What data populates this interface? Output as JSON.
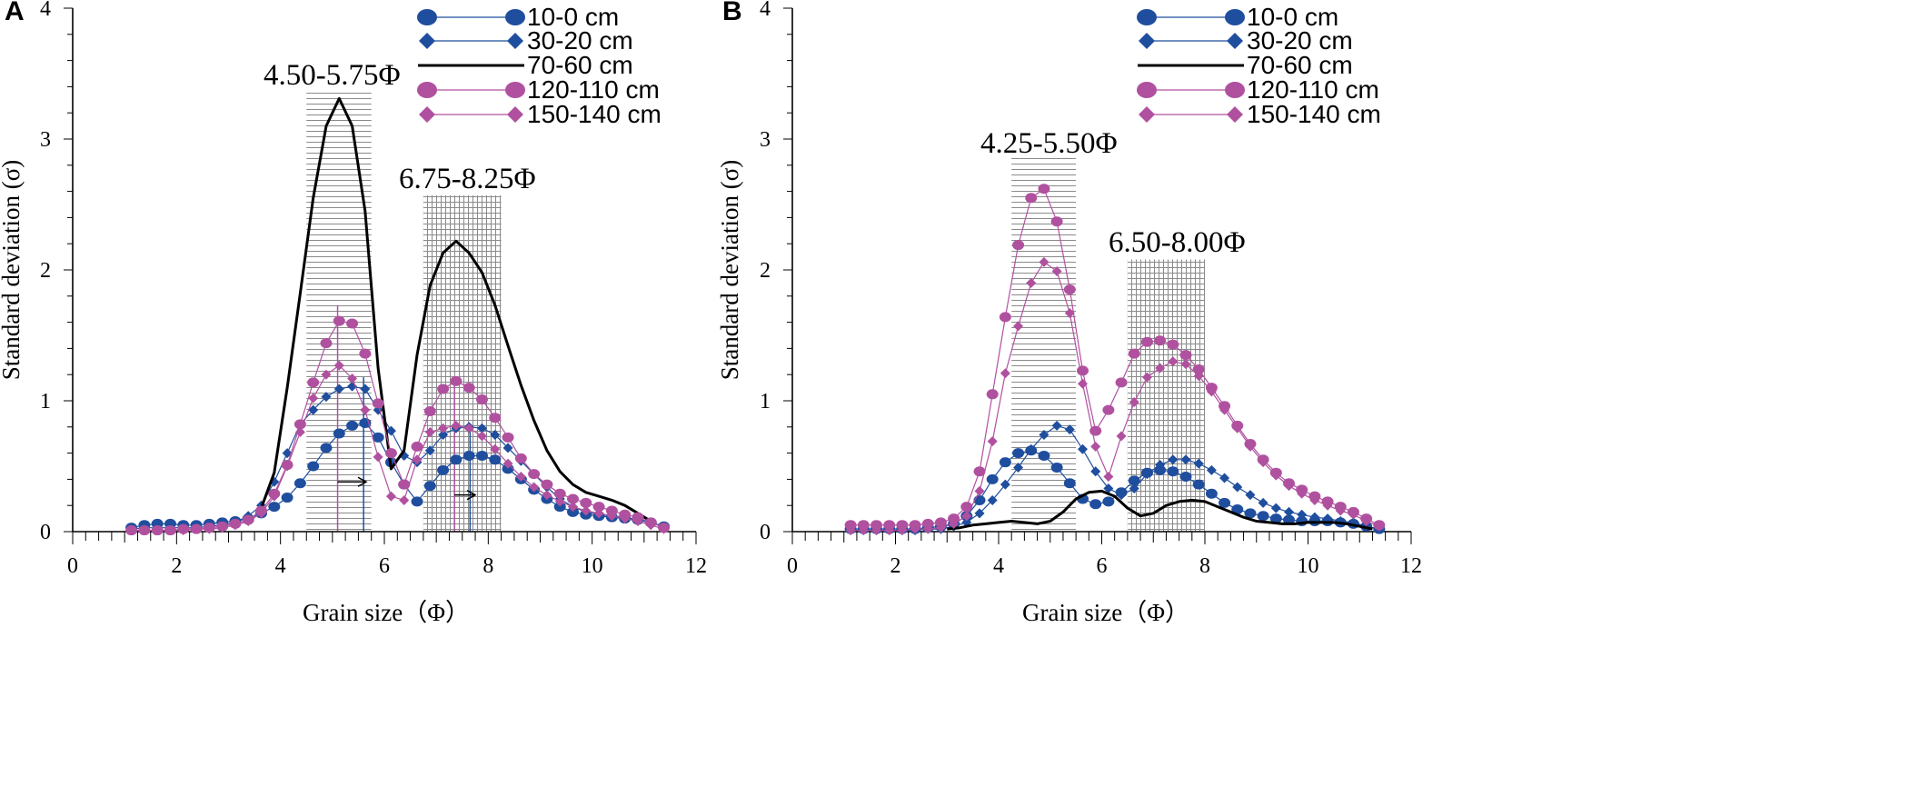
{
  "chart_data": [
    {
      "type": "line",
      "panel": "A",
      "xlabel": "Grain size（Φ）",
      "ylabel": "Standard deviation (σ)",
      "xlim": [
        0,
        12
      ],
      "ylim": [
        0,
        4
      ],
      "x_ticks": [
        "0",
        "2",
        "4",
        "6",
        "8",
        "10",
        "12"
      ],
      "y_ticks": [
        "0",
        "1",
        "2",
        "3",
        "4"
      ],
      "shaded_bands": [
        {
          "label": "4.50-5.75Φ",
          "x_range": [
            4.5,
            5.75
          ],
          "y_top": 3.38,
          "pattern": "horizontal"
        },
        {
          "label": "6.75-8.25Φ",
          "x_range": [
            6.75,
            8.25
          ],
          "y_top": 2.57,
          "pattern": "grid"
        }
      ],
      "vertical_markers": [
        {
          "x": 5.1,
          "y": 1.73,
          "color": "#b0519f"
        },
        {
          "x": 5.6,
          "y": 1.18,
          "color": "#1f4e9e"
        },
        {
          "x": 7.35,
          "y": 1.15,
          "color": "#b0519f"
        },
        {
          "x": 7.65,
          "y": 0.82,
          "color": "#1f4e9e"
        }
      ],
      "arrows": [
        {
          "from": [
            5.1,
            0.38
          ],
          "to": [
            5.65,
            0.38
          ]
        },
        {
          "from": [
            7.35,
            0.28
          ],
          "to": [
            7.75,
            0.28
          ]
        }
      ],
      "series": [
        {
          "name": "10-0 cm",
          "marker": "circle",
          "color": "#1f4e9e",
          "x": [
            1.13,
            1.38,
            1.63,
            1.88,
            2.13,
            2.38,
            2.63,
            2.88,
            3.13,
            3.38,
            3.63,
            3.88,
            4.13,
            4.38,
            4.63,
            4.88,
            5.13,
            5.38,
            5.63,
            5.88,
            6.13,
            6.38,
            6.63,
            6.88,
            7.13,
            7.38,
            7.63,
            7.88,
            8.13,
            8.38,
            8.63,
            8.88,
            9.13,
            9.38,
            9.63,
            9.88,
            10.13,
            10.38,
            10.63,
            10.88,
            11.13,
            11.38
          ],
          "values": [
            0.03,
            0.05,
            0.06,
            0.06,
            0.05,
            0.05,
            0.06,
            0.07,
            0.08,
            0.1,
            0.14,
            0.19,
            0.26,
            0.37,
            0.5,
            0.64,
            0.75,
            0.81,
            0.83,
            0.72,
            0.53,
            0.36,
            0.23,
            0.35,
            0.47,
            0.55,
            0.58,
            0.58,
            0.55,
            0.48,
            0.4,
            0.32,
            0.25,
            0.19,
            0.15,
            0.13,
            0.12,
            0.11,
            0.1,
            0.09,
            0.07,
            0.04
          ]
        },
        {
          "name": "30-20 cm",
          "marker": "diamond",
          "color": "#1f4e9e",
          "x": [
            1.13,
            1.38,
            1.63,
            1.88,
            2.13,
            2.38,
            2.63,
            2.88,
            3.13,
            3.38,
            3.63,
            3.88,
            4.13,
            4.38,
            4.63,
            4.88,
            5.13,
            5.38,
            5.63,
            5.88,
            6.13,
            6.38,
            6.63,
            6.88,
            7.13,
            7.38,
            7.63,
            7.88,
            8.13,
            8.38,
            8.63,
            8.88,
            9.13,
            9.38,
            9.63,
            9.88,
            10.13,
            10.38,
            10.63,
            10.88,
            11.13,
            11.38
          ],
          "values": [
            0.02,
            0.03,
            0.03,
            0.03,
            0.03,
            0.03,
            0.04,
            0.05,
            0.07,
            0.12,
            0.2,
            0.38,
            0.6,
            0.82,
            0.93,
            1.03,
            1.09,
            1.11,
            1.09,
            0.93,
            0.77,
            0.58,
            0.53,
            0.62,
            0.74,
            0.79,
            0.8,
            0.79,
            0.74,
            0.64,
            0.54,
            0.44,
            0.34,
            0.25,
            0.19,
            0.15,
            0.13,
            0.12,
            0.11,
            0.09,
            0.07,
            0.04
          ]
        },
        {
          "name": "70-60 cm",
          "marker": "none",
          "color": "#000000",
          "x": [
            3.63,
            3.88,
            4.13,
            4.38,
            4.63,
            4.88,
            5.13,
            5.38,
            5.63,
            5.88,
            6.13,
            6.38,
            6.63,
            6.88,
            7.13,
            7.38,
            7.63,
            7.88,
            8.13,
            8.38,
            8.63,
            8.88,
            9.13,
            9.38,
            9.63,
            9.88,
            10.13,
            10.38,
            10.63,
            10.88,
            11.13
          ],
          "values": [
            0.18,
            0.45,
            1.1,
            1.82,
            2.55,
            3.1,
            3.31,
            3.1,
            2.45,
            1.25,
            0.48,
            0.62,
            1.35,
            1.88,
            2.13,
            2.22,
            2.13,
            1.98,
            1.73,
            1.42,
            1.12,
            0.85,
            0.62,
            0.46,
            0.36,
            0.3,
            0.27,
            0.24,
            0.2,
            0.14,
            0.08
          ]
        },
        {
          "name": "120-110 cm",
          "marker": "circle",
          "color": "#b0519f",
          "x": [
            1.13,
            1.38,
            1.63,
            1.88,
            2.13,
            2.38,
            2.63,
            2.88,
            3.13,
            3.38,
            3.63,
            3.88,
            4.13,
            4.38,
            4.63,
            4.88,
            5.13,
            5.38,
            5.63,
            5.88,
            6.13,
            6.38,
            6.63,
            6.88,
            7.13,
            7.38,
            7.63,
            7.88,
            8.13,
            8.38,
            8.63,
            8.88,
            9.13,
            9.38,
            9.63,
            9.88,
            10.13,
            10.38,
            10.63,
            10.88,
            11.13,
            11.38
          ],
          "values": [
            0.01,
            0.01,
            0.01,
            0.01,
            0.02,
            0.02,
            0.03,
            0.04,
            0.06,
            0.09,
            0.16,
            0.29,
            0.51,
            0.82,
            1.14,
            1.44,
            1.61,
            1.59,
            1.36,
            0.98,
            0.6,
            0.36,
            0.65,
            0.92,
            1.09,
            1.15,
            1.1,
            1.01,
            0.87,
            0.72,
            0.56,
            0.44,
            0.36,
            0.29,
            0.25,
            0.22,
            0.19,
            0.16,
            0.13,
            0.11,
            0.07,
            0.03
          ]
        },
        {
          "name": "150-140 cm",
          "marker": "diamond",
          "color": "#b0519f",
          "x": [
            1.13,
            1.38,
            1.63,
            1.88,
            2.13,
            2.38,
            2.63,
            2.88,
            3.13,
            3.38,
            3.63,
            3.88,
            4.13,
            4.38,
            4.63,
            4.88,
            5.13,
            5.38,
            5.63,
            5.88,
            6.13,
            6.38,
            6.63,
            6.88,
            7.13,
            7.38,
            7.63,
            7.88,
            8.13,
            8.38,
            8.63,
            8.88,
            9.13,
            9.38,
            9.63,
            9.88,
            10.13,
            10.38,
            10.63,
            10.88,
            11.13,
            11.38
          ],
          "values": [
            0.01,
            0.01,
            0.01,
            0.01,
            0.01,
            0.02,
            0.02,
            0.03,
            0.05,
            0.08,
            0.14,
            0.27,
            0.5,
            0.76,
            1.02,
            1.2,
            1.27,
            1.17,
            0.93,
            0.57,
            0.27,
            0.24,
            0.55,
            0.76,
            0.79,
            0.81,
            0.79,
            0.73,
            0.63,
            0.52,
            0.42,
            0.34,
            0.28,
            0.23,
            0.19,
            0.16,
            0.14,
            0.12,
            0.1,
            0.08,
            0.05,
            0.02
          ]
        }
      ]
    },
    {
      "type": "line",
      "panel": "B",
      "xlabel": "Grain size（Φ）",
      "ylabel": "Standard deviation (σ)",
      "xlim": [
        0,
        12
      ],
      "ylim": [
        0,
        4
      ],
      "x_ticks": [
        "0",
        "2",
        "4",
        "6",
        "8",
        "10",
        "12"
      ],
      "y_ticks": [
        "0",
        "1",
        "2",
        "3",
        "4"
      ],
      "shaded_bands": [
        {
          "label": "4.25-5.50Φ",
          "x_range": [
            4.25,
            5.5
          ],
          "y_top": 2.87,
          "pattern": "horizontal"
        },
        {
          "label": "6.50-8.00Φ",
          "x_range": [
            6.5,
            8.0
          ],
          "y_top": 2.08,
          "pattern": "grid"
        }
      ],
      "vertical_markers": [],
      "arrows": [],
      "series": [
        {
          "name": "10-0 cm",
          "marker": "circle",
          "color": "#1f4e9e",
          "x": [
            1.13,
            1.38,
            1.63,
            1.88,
            2.13,
            2.38,
            2.63,
            2.88,
            3.13,
            3.38,
            3.63,
            3.88,
            4.13,
            4.38,
            4.63,
            4.88,
            5.13,
            5.38,
            5.63,
            5.88,
            6.13,
            6.38,
            6.63,
            6.88,
            7.13,
            7.38,
            7.63,
            7.88,
            8.13,
            8.38,
            8.63,
            8.88,
            9.13,
            9.38,
            9.63,
            9.88,
            10.13,
            10.38,
            10.63,
            10.88,
            11.13,
            11.38
          ],
          "values": [
            0.02,
            0.02,
            0.02,
            0.02,
            0.02,
            0.02,
            0.03,
            0.04,
            0.06,
            0.12,
            0.24,
            0.4,
            0.53,
            0.6,
            0.62,
            0.58,
            0.49,
            0.37,
            0.25,
            0.21,
            0.23,
            0.3,
            0.39,
            0.45,
            0.47,
            0.46,
            0.42,
            0.36,
            0.29,
            0.22,
            0.17,
            0.14,
            0.12,
            0.1,
            0.09,
            0.08,
            0.08,
            0.08,
            0.07,
            0.06,
            0.04,
            0.02
          ]
        },
        {
          "name": "30-20 cm",
          "marker": "diamond",
          "color": "#1f4e9e",
          "x": [
            1.13,
            1.38,
            1.63,
            1.88,
            2.13,
            2.38,
            2.63,
            2.88,
            3.13,
            3.38,
            3.63,
            3.88,
            4.13,
            4.38,
            4.63,
            4.88,
            5.13,
            5.38,
            5.63,
            5.88,
            6.13,
            6.38,
            6.63,
            6.88,
            7.13,
            7.38,
            7.63,
            7.88,
            8.13,
            8.38,
            8.63,
            8.88,
            9.13,
            9.38,
            9.63,
            9.88,
            10.13,
            10.38,
            10.63,
            10.88,
            11.13,
            11.38
          ],
          "values": [
            0.01,
            0.01,
            0.01,
            0.01,
            0.01,
            0.01,
            0.02,
            0.02,
            0.04,
            0.07,
            0.14,
            0.24,
            0.36,
            0.49,
            0.63,
            0.74,
            0.81,
            0.78,
            0.63,
            0.46,
            0.33,
            0.28,
            0.33,
            0.44,
            0.51,
            0.55,
            0.55,
            0.52,
            0.47,
            0.41,
            0.34,
            0.28,
            0.22,
            0.18,
            0.15,
            0.13,
            0.11,
            0.1,
            0.08,
            0.07,
            0.04,
            0.02
          ]
        },
        {
          "name": "70-60 cm",
          "marker": "none",
          "color": "#000000",
          "x": [
            3.0,
            3.25,
            3.5,
            3.75,
            4.0,
            4.25,
            4.5,
            4.75,
            5.0,
            5.25,
            5.5,
            5.75,
            6.0,
            6.25,
            6.5,
            6.75,
            7.0,
            7.25,
            7.5,
            7.75,
            8.0,
            8.25,
            8.5,
            8.75,
            9.0,
            9.25,
            9.5,
            9.75,
            10.0,
            10.25,
            10.5,
            10.75,
            11.0,
            11.25
          ],
          "values": [
            0.02,
            0.03,
            0.05,
            0.06,
            0.07,
            0.08,
            0.07,
            0.06,
            0.08,
            0.15,
            0.25,
            0.3,
            0.31,
            0.27,
            0.18,
            0.12,
            0.14,
            0.2,
            0.23,
            0.24,
            0.23,
            0.19,
            0.15,
            0.11,
            0.08,
            0.07,
            0.06,
            0.06,
            0.07,
            0.07,
            0.07,
            0.06,
            0.04,
            0.02
          ]
        },
        {
          "name": "120-110 cm",
          "marker": "circle",
          "color": "#b0519f",
          "x": [
            1.13,
            1.38,
            1.63,
            1.88,
            2.13,
            2.38,
            2.63,
            2.88,
            3.13,
            3.38,
            3.63,
            3.88,
            4.13,
            4.38,
            4.63,
            4.88,
            5.13,
            5.38,
            5.63,
            5.88,
            6.13,
            6.38,
            6.63,
            6.88,
            7.13,
            7.38,
            7.63,
            7.88,
            8.13,
            8.38,
            8.63,
            8.88,
            9.13,
            9.38,
            9.63,
            9.88,
            10.13,
            10.38,
            10.63,
            10.88,
            11.13,
            11.38
          ],
          "values": [
            0.05,
            0.05,
            0.05,
            0.05,
            0.05,
            0.05,
            0.06,
            0.07,
            0.1,
            0.19,
            0.46,
            1.05,
            1.64,
            2.19,
            2.55,
            2.62,
            2.37,
            1.85,
            1.23,
            0.77,
            0.93,
            1.14,
            1.36,
            1.45,
            1.46,
            1.43,
            1.35,
            1.24,
            1.1,
            0.96,
            0.81,
            0.67,
            0.55,
            0.45,
            0.37,
            0.32,
            0.27,
            0.23,
            0.19,
            0.15,
            0.1,
            0.05
          ]
        },
        {
          "name": "150-140 cm",
          "marker": "diamond",
          "color": "#b0519f",
          "x": [
            1.13,
            1.38,
            1.63,
            1.88,
            2.13,
            2.38,
            2.63,
            2.88,
            3.13,
            3.38,
            3.63,
            3.88,
            4.13,
            4.38,
            4.63,
            4.88,
            5.13,
            5.38,
            5.63,
            5.88,
            6.13,
            6.38,
            6.63,
            6.88,
            7.13,
            7.38,
            7.63,
            7.88,
            8.13,
            8.38,
            8.63,
            8.88,
            9.13,
            9.38,
            9.63,
            9.88,
            10.13,
            10.38,
            10.63,
            10.88,
            11.13,
            11.38
          ],
          "values": [
            0.01,
            0.01,
            0.01,
            0.01,
            0.01,
            0.02,
            0.02,
            0.03,
            0.06,
            0.12,
            0.31,
            0.69,
            1.21,
            1.57,
            1.9,
            2.06,
            1.99,
            1.67,
            1.13,
            0.65,
            0.42,
            0.73,
            0.99,
            1.18,
            1.25,
            1.3,
            1.28,
            1.19,
            1.07,
            0.93,
            0.79,
            0.65,
            0.53,
            0.43,
            0.35,
            0.29,
            0.24,
            0.2,
            0.16,
            0.13,
            0.08,
            0.04
          ]
        }
      ]
    }
  ]
}
